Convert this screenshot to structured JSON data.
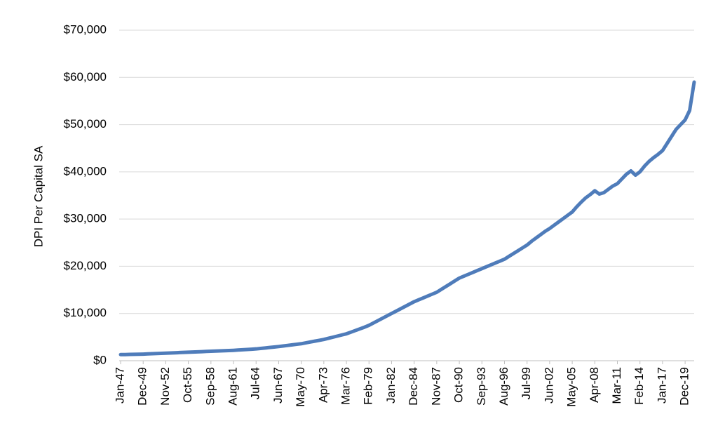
{
  "chart_data": {
    "type": "line",
    "y_label": "DPI Per Capital SA",
    "categories": [
      "Jan-47",
      null,
      null,
      null,
      null,
      "Dec-49",
      null,
      null,
      null,
      null,
      "Nov-52",
      null,
      null,
      null,
      null,
      "Oct-55",
      null,
      null,
      null,
      null,
      "Sep-58",
      null,
      null,
      null,
      null,
      "Aug-61",
      null,
      null,
      null,
      null,
      "Jul-64",
      null,
      null,
      null,
      null,
      "Jun-67",
      null,
      null,
      null,
      null,
      "May-70",
      null,
      null,
      null,
      null,
      "Apr-73",
      null,
      null,
      null,
      null,
      "Mar-76",
      null,
      null,
      null,
      null,
      "Feb-79",
      null,
      null,
      null,
      null,
      "Jan-82",
      null,
      null,
      null,
      null,
      "Dec-84",
      null,
      null,
      null,
      null,
      "Nov-87",
      null,
      null,
      null,
      null,
      "Oct-90",
      null,
      null,
      null,
      null,
      "Sep-93",
      null,
      null,
      null,
      null,
      "Aug-96",
      null,
      null,
      null,
      null,
      "Jul-99",
      null,
      null,
      null,
      null,
      "Jun-02",
      null,
      null,
      null,
      null,
      "May-05",
      null,
      null,
      null,
      null,
      "Apr-08",
      null,
      null,
      null,
      null,
      "Mar-11",
      null,
      null,
      null,
      null,
      "Feb-14",
      null,
      null,
      null,
      null,
      "Jan-17",
      null,
      null,
      null,
      null,
      "Dec-19",
      null,
      null
    ],
    "values": [
      1300,
      1310,
      1330,
      1350,
      1380,
      1400,
      1440,
      1480,
      1520,
      1560,
      1600,
      1640,
      1680,
      1720,
      1760,
      1800,
      1840,
      1880,
      1920,
      1960,
      2000,
      2040,
      2080,
      2120,
      2160,
      2200,
      2260,
      2320,
      2380,
      2440,
      2500,
      2600,
      2700,
      2800,
      2900,
      3000,
      3120,
      3240,
      3360,
      3480,
      3600,
      3780,
      3960,
      4140,
      4320,
      4500,
      4740,
      4980,
      5220,
      5460,
      5700,
      6050,
      6400,
      6750,
      7100,
      7500,
      8000,
      8500,
      9000,
      9500,
      10000,
      10500,
      11000,
      11500,
      12000,
      12500,
      12900,
      13300,
      13700,
      14100,
      14500,
      15100,
      15700,
      16300,
      16900,
      17500,
      17900,
      18300,
      18700,
      19100,
      19500,
      19900,
      20300,
      20700,
      21100,
      21500,
      22100,
      22700,
      23300,
      23900,
      24500,
      25300,
      26000,
      26700,
      27400,
      28000,
      28700,
      29400,
      30100,
      30800,
      31500,
      32600,
      33600,
      34500,
      35200,
      36000,
      35300,
      35600,
      36300,
      37000,
      37500,
      38500,
      39500,
      40200,
      39300,
      40000,
      41200,
      42200,
      43000,
      43700,
      44500,
      46000,
      47500,
      49000,
      50000,
      51000,
      53000,
      59000
    ],
    "color": "#4f7cba",
    "ylim": [
      0,
      70000
    ],
    "yticks": [
      {
        "value": 0,
        "label": "$0"
      },
      {
        "value": 10000,
        "label": "$10,000"
      },
      {
        "value": 20000,
        "label": "$20,000"
      },
      {
        "value": 30000,
        "label": "$30,000"
      },
      {
        "value": 40000,
        "label": "$40,000"
      },
      {
        "value": 50000,
        "label": "$50,000"
      },
      {
        "value": 60000,
        "label": "$60,000"
      },
      {
        "value": 70000,
        "label": "$70,000"
      }
    ],
    "grid": true
  }
}
